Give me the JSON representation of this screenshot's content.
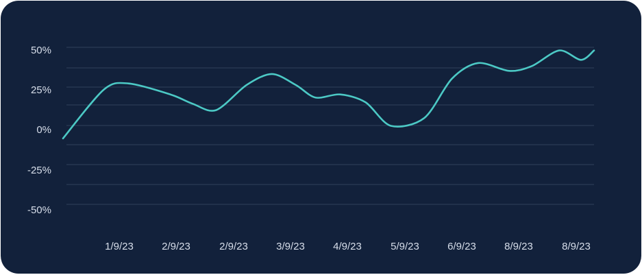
{
  "chart_data": {
    "type": "line",
    "title": "",
    "xlabel": "",
    "ylabel": "",
    "x_tick_labels": [
      "1/9/23",
      "2/9/23",
      "2/9/23",
      "3/9/23",
      "4/9/23",
      "5/9/23",
      "6/9/23",
      "8/9/23",
      "8/9/23"
    ],
    "y_tick_labels": [
      "50%",
      "25%",
      "0%",
      "-25%",
      "-50%"
    ],
    "ylim": [
      -50,
      50
    ],
    "grid": true,
    "colors": {
      "background": "#12213b",
      "line": "#4cc9c5",
      "grid": "#30415b",
      "text": "#d7deea"
    },
    "series": [
      {
        "x": [
          0,
          0.56,
          0.9,
          1.48,
          1.79,
          2.11,
          2.53,
          2.88,
          3.21,
          3.48,
          3.82,
          4.17,
          4.52,
          4.98,
          5.36,
          5.72,
          6.15,
          6.46,
          6.84,
          7.14,
          7.32
        ],
        "y": [
          -8,
          23,
          27,
          20,
          14,
          10,
          26,
          33,
          26,
          18,
          20,
          15,
          0,
          5,
          30,
          40,
          35,
          38,
          48,
          42,
          48
        ]
      }
    ]
  }
}
